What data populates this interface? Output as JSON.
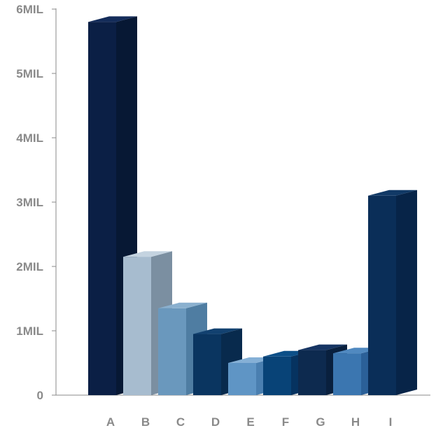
{
  "chart_data": {
    "type": "bar",
    "style": "3d-columns",
    "categories": [
      "A",
      "B",
      "C",
      "D",
      "E",
      "F",
      "G",
      "H",
      "I"
    ],
    "values": [
      5.8,
      2.15,
      1.35,
      0.95,
      0.5,
      0.6,
      0.7,
      0.65,
      3.1
    ],
    "ylim": [
      0,
      6
    ],
    "yticks": [
      0,
      1,
      2,
      3,
      4,
      5,
      6
    ],
    "ytick_labels": [
      "0",
      "1MIL",
      "2MIL",
      "3MIL",
      "4MIL",
      "5MIL",
      "6MIL"
    ],
    "title": "",
    "xlabel": "",
    "ylabel": "",
    "grid": false,
    "bar_colors": [
      {
        "front": "#0b1f45",
        "side": "#071834",
        "top": "#142c5a"
      },
      {
        "front": "#a7bccf",
        "side": "#7b8fa1",
        "top": "#c4d3e0"
      },
      {
        "front": "#6a98bd",
        "side": "#4f7da2",
        "top": "#8ab0cf"
      },
      {
        "front": "#0a3560",
        "side": "#082a4d",
        "top": "#124170"
      },
      {
        "front": "#5f95c5",
        "side": "#4a7fb0",
        "top": "#85b0d6"
      },
      {
        "front": "#084377",
        "side": "#063360",
        "top": "#0c4f88"
      },
      {
        "front": "#0d2a4f",
        "side": "#09203e",
        "top": "#163563"
      },
      {
        "front": "#3b76b0",
        "side": "#2b6098",
        "top": "#5089c0"
      },
      {
        "front": "#0a2e58",
        "side": "#072448",
        "top": "#113966"
      }
    ],
    "axis_color": "#8a8a8a"
  }
}
